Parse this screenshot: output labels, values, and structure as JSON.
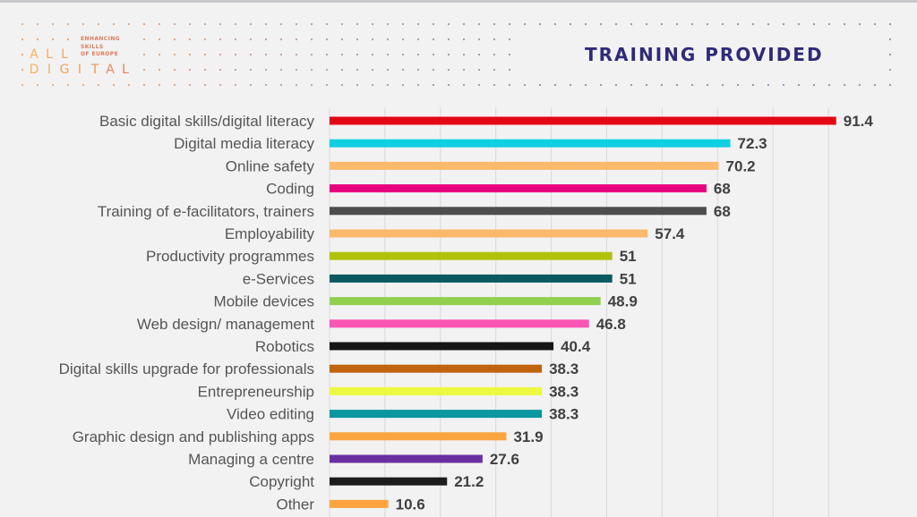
{
  "logo": {
    "line1": "ALL",
    "line2": "DIGITAL",
    "tagline": [
      "ENHANCING",
      "SKILLS",
      "OF EUROPE"
    ]
  },
  "header": {
    "title": "TRAINING PROVIDED"
  },
  "colors": {
    "background": "#f2f2f3",
    "title": "#2e2a7a",
    "gridline": "#d9d9dc",
    "category_text": "#555555",
    "value_text": "#404040"
  },
  "chart_data": {
    "type": "bar",
    "orientation": "horizontal",
    "title": "TRAINING PROVIDED",
    "xlabel": "",
    "ylabel": "",
    "xlim": [
      0,
      100
    ],
    "grid": true,
    "grid_step": 10,
    "legend": "none",
    "categories": [
      "Basic digital skills/digital literacy",
      "Digital media literacy",
      "Online safety",
      "Coding",
      "Training of e-facilitators, trainers",
      "Employability",
      "Productivity programmes",
      "e-Services",
      "Mobile devices",
      "Web design/ management",
      "Robotics",
      "Digital skills upgrade for professionals",
      "Entrepreneurship",
      "Video editing",
      "Graphic design and publishing apps",
      "Managing a centre",
      "Copyright",
      "Other"
    ],
    "values": [
      91.4,
      72.3,
      70.2,
      68,
      68,
      57.4,
      51,
      51,
      48.9,
      46.8,
      40.4,
      38.3,
      38.3,
      38.3,
      31.9,
      27.6,
      21.2,
      10.6
    ],
    "value_labels": [
      "91.4",
      "72.3",
      "70.2",
      "68",
      "68",
      "57.4",
      "51",
      "51",
      "48.9",
      "46.8",
      "40.4",
      "38.3",
      "38.3",
      "38.3",
      "31.9",
      "27.6",
      "21.2",
      "10.6"
    ],
    "bar_colors": [
      "#e30613",
      "#0fcfe3",
      "#fbb96b",
      "#e6007e",
      "#4d4d4d",
      "#fbb96b",
      "#afc30a",
      "#0b5a62",
      "#8fd14f",
      "#fb55b3",
      "#151515",
      "#c06410",
      "#edf940",
      "#0a97a0",
      "#fca53f",
      "#6a2ea0",
      "#1c1c1c",
      "#fca53f"
    ]
  }
}
